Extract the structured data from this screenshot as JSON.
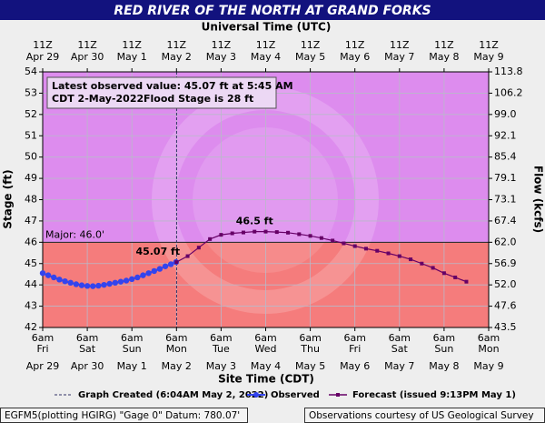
{
  "chart_data": {
    "type": "line",
    "title": "RED RIVER OF THE NORTH AT GRAND FORKS",
    "top_axis_title": "Universal Time (UTC)",
    "xlabel": "Site Time (CDT)",
    "ylabel": "Stage (ft)",
    "y2label": "Flow (kcfs)",
    "xlim": [
      "2022-04-29T06:00",
      "2022-05-09T06:00"
    ],
    "xticks": [
      {
        "value": "2022-04-29T06:00",
        "label": "6am"
      },
      {
        "value": "2022-04-30T06:00",
        "label": "6am"
      },
      {
        "value": "2022-05-01T06:00",
        "label": "6am"
      },
      {
        "value": "2022-05-02T06:00",
        "label": "6am"
      },
      {
        "value": "2022-05-03T06:00",
        "label": "6am"
      },
      {
        "value": "2022-05-04T06:00",
        "label": "6am"
      },
      {
        "value": "2022-05-05T06:00",
        "label": "6am"
      },
      {
        "value": "2022-05-06T06:00",
        "label": "6am"
      },
      {
        "value": "2022-05-07T06:00",
        "label": "6am"
      },
      {
        "value": "2022-05-08T06:00",
        "label": "6am"
      },
      {
        "value": "2022-05-09T06:00",
        "label": "6am"
      }
    ],
    "xtick_days": [
      "Fri",
      "Sat",
      "Sun",
      "Mon",
      "Tue",
      "Wed",
      "Thu",
      "Fri",
      "Sat",
      "Sun",
      "Mon"
    ],
    "xtick_dates": [
      "Apr 29",
      "Apr 30",
      "May 1",
      "May 2",
      "May 3",
      "May 4",
      "May 5",
      "May 6",
      "May 7",
      "May 8",
      "May 9"
    ],
    "top_xtick_labels": [
      "11Z",
      "11Z",
      "11Z",
      "11Z",
      "11Z",
      "11Z",
      "11Z",
      "11Z",
      "11Z",
      "11Z",
      "11Z"
    ],
    "ylim": [
      42,
      54
    ],
    "yticks": [
      42,
      43,
      44,
      45,
      46,
      47,
      48,
      49,
      50,
      51,
      52,
      53,
      54
    ],
    "y2lim": [
      43.5,
      113.8
    ],
    "y2ticks": [
      43.5,
      47.6,
      {
        "value": 52,
        "label": "52.0"
      },
      56.9,
      {
        "value": 62,
        "label": "62.0"
      },
      67.4,
      73.1,
      79.1,
      85.4,
      92.1,
      {
        "value": 99,
        "label": "99.0"
      },
      106.2,
      113.8
    ],
    "grid": true,
    "major": {
      "label": "Major: 46.0'",
      "value": 46
    },
    "above_major_color": "#dd8cee",
    "below_major_color": "#f57c7c",
    "graph_created": {
      "label": "Graph Created (6:04AM May 2, 2022)",
      "x": "2022-05-02T06:04"
    },
    "info": [
      "Latest observed value: 45.07 ft at 5:45 AM",
      "CDT 2-May-2022.",
      "Flood Stage is 28 ft"
    ],
    "annotations": [
      {
        "text": "46.5 ft",
        "x": "2022-05-04T00:00",
        "y": 46.5,
        "color": "#660066"
      },
      {
        "text": "45.07 ft",
        "x": "2022-05-02T05:45",
        "y": 45.07,
        "color": "#3344ee"
      }
    ],
    "series": [
      {
        "name": "Observed",
        "color": "#3344ee",
        "marker": "circle",
        "x": [
          "2022-04-29T06:00",
          "2022-04-29T09:00",
          "2022-04-29T12:00",
          "2022-04-29T15:00",
          "2022-04-29T18:00",
          "2022-04-29T21:00",
          "2022-04-30T00:00",
          "2022-04-30T03:00",
          "2022-04-30T06:00",
          "2022-04-30T09:00",
          "2022-04-30T12:00",
          "2022-04-30T15:00",
          "2022-04-30T18:00",
          "2022-04-30T21:00",
          "2022-05-01T00:00",
          "2022-05-01T03:00",
          "2022-05-01T06:00",
          "2022-05-01T09:00",
          "2022-05-01T12:00",
          "2022-05-01T15:00",
          "2022-05-01T18:00",
          "2022-05-01T21:00",
          "2022-05-02T00:00",
          "2022-05-02T03:00",
          "2022-05-02T05:45"
        ],
        "values": [
          44.55,
          44.45,
          44.35,
          44.25,
          44.17,
          44.1,
          44.03,
          43.98,
          43.95,
          43.94,
          43.96,
          44.0,
          44.05,
          44.1,
          44.15,
          44.2,
          44.27,
          44.35,
          44.45,
          44.55,
          44.65,
          44.75,
          44.87,
          44.97,
          45.07
        ]
      },
      {
        "name": "Forecast (issued 9:13PM May 1)",
        "color": "#660066",
        "marker": "square",
        "x": [
          "2022-05-02T06:00",
          "2022-05-02T12:00",
          "2022-05-02T18:00",
          "2022-05-03T00:00",
          "2022-05-03T06:00",
          "2022-05-03T12:00",
          "2022-05-03T18:00",
          "2022-05-04T00:00",
          "2022-05-04T06:00",
          "2022-05-04T12:00",
          "2022-05-04T18:00",
          "2022-05-05T00:00",
          "2022-05-05T06:00",
          "2022-05-05T12:00",
          "2022-05-05T18:00",
          "2022-05-06T00:00",
          "2022-05-06T06:00",
          "2022-05-06T12:00",
          "2022-05-06T18:00",
          "2022-05-07T00:00",
          "2022-05-07T06:00",
          "2022-05-07T12:00",
          "2022-05-07T18:00",
          "2022-05-08T00:00",
          "2022-05-08T06:00",
          "2022-05-08T12:00",
          "2022-05-08T18:00"
        ],
        "values": [
          45.07,
          45.35,
          45.75,
          46.15,
          46.35,
          46.42,
          46.46,
          46.5,
          46.5,
          46.48,
          46.45,
          46.38,
          46.3,
          46.2,
          46.08,
          45.95,
          45.82,
          45.7,
          45.6,
          45.48,
          45.35,
          45.2,
          45.0,
          44.8,
          44.55,
          44.35,
          44.15
        ]
      }
    ],
    "footer_left": "EGFM5(plotting HGIRG) \"Gage 0\" Datum: 780.07'",
    "footer_right": "Observations courtesy of US Geological Survey"
  }
}
